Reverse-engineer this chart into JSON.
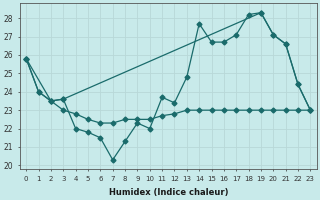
{
  "xlabel": "Humidex (Indice chaleur)",
  "bg_color": "#c8eaea",
  "grid_color": "#d4e8e8",
  "line_color": "#1a6b6b",
  "xlim": [
    -0.5,
    23.5
  ],
  "ylim": [
    19.8,
    28.8
  ],
  "xticks": [
    0,
    1,
    2,
    3,
    4,
    5,
    6,
    7,
    8,
    9,
    10,
    11,
    12,
    13,
    14,
    15,
    16,
    17,
    18,
    19,
    20,
    21,
    22,
    23
  ],
  "yticks": [
    20,
    21,
    22,
    23,
    24,
    25,
    26,
    27,
    28
  ],
  "line1_x": [
    0,
    1,
    2,
    3,
    4,
    5,
    6,
    7,
    8,
    9,
    10,
    11,
    12,
    13,
    14,
    15,
    16,
    17,
    18,
    19,
    20,
    21,
    22,
    23
  ],
  "line1_y": [
    25.8,
    24.0,
    23.5,
    23.6,
    22.0,
    21.8,
    21.5,
    20.3,
    21.3,
    22.3,
    22.0,
    23.7,
    23.4,
    24.8,
    27.7,
    26.7,
    26.7,
    27.1,
    28.2,
    28.3,
    27.1,
    26.6,
    24.4,
    23.0
  ],
  "line2_x": [
    0,
    2,
    3,
    19,
    20,
    21,
    22,
    23
  ],
  "line2_y": [
    25.8,
    23.5,
    23.6,
    28.3,
    27.1,
    26.6,
    24.4,
    23.0
  ],
  "line3_x": [
    0,
    1,
    2,
    3,
    4,
    5,
    6,
    7,
    8,
    9,
    10,
    11,
    12,
    13,
    14,
    15,
    16,
    17,
    18,
    19,
    20,
    21,
    22,
    23
  ],
  "line3_y": [
    25.8,
    24.0,
    23.5,
    23.0,
    22.8,
    22.5,
    22.3,
    22.3,
    22.5,
    22.5,
    22.5,
    22.7,
    22.8,
    23.0,
    23.0,
    23.0,
    23.0,
    23.0,
    23.0,
    23.0,
    23.0,
    23.0,
    23.0,
    23.0
  ]
}
